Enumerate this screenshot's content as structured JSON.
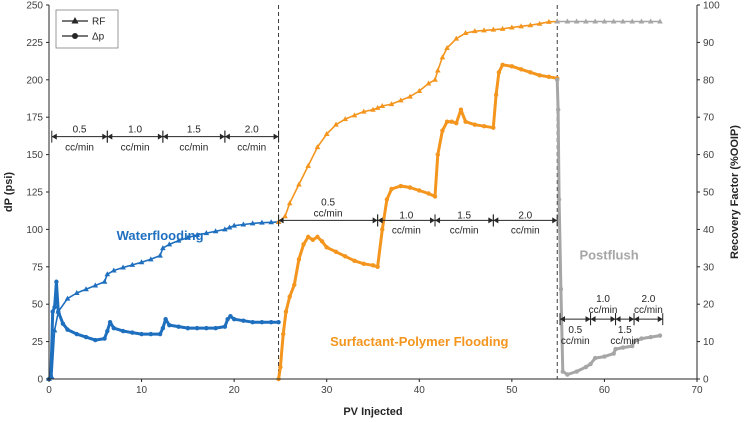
{
  "chart_data": {
    "type": "line",
    "xlabel": "PV Injected",
    "ylabel": "dP (psi)",
    "y2label": "Recovery Factor (%OOIP)",
    "xlim": [
      0,
      70
    ],
    "ylim": [
      0,
      250
    ],
    "y2lim": [
      0,
      100
    ],
    "xticks": [
      "0",
      "10",
      "20",
      "30",
      "40",
      "50",
      "60",
      "70"
    ],
    "yticks": [
      "0",
      "25",
      "50",
      "75",
      "100",
      "125",
      "150",
      "175",
      "200",
      "225",
      "250"
    ],
    "y2ticks": [
      "0",
      "10",
      "20",
      "30",
      "40",
      "50",
      "60",
      "70",
      "80",
      "90",
      "100"
    ],
    "legend": {
      "position": "top-left",
      "entries": [
        {
          "label": "RF",
          "marker": "triangle"
        },
        {
          "label": "Δp",
          "marker": "circle"
        }
      ]
    },
    "colors": {
      "waterflooding": "#1f6fbf",
      "surfactant_polymer": "#f4951e",
      "postflush": "#a6a6a6",
      "axis": "#262626"
    },
    "phase_boundaries_x": [
      24.8,
      54.9
    ],
    "phases": [
      {
        "label": "Waterflooding",
        "color": "#1f6fbf",
        "x": 12,
        "y": 93
      },
      {
        "label": "Surfactant-Polymer Flooding",
        "color": "#f4951e",
        "x": 40,
        "y": 22
      },
      {
        "label": "Postflush",
        "color": "#a6a6a6",
        "x": 60.5,
        "y": 80
      }
    ],
    "rate_segments": [
      {
        "x0": 0.3,
        "x1": 6.3,
        "y": 162,
        "rate": "0.5",
        "unit": "cc/min"
      },
      {
        "x0": 6.3,
        "x1": 12.3,
        "y": 162,
        "rate": "1.0",
        "unit": "cc/min"
      },
      {
        "x0": 12.3,
        "x1": 19.0,
        "y": 162,
        "rate": "1.5",
        "unit": "cc/min"
      },
      {
        "x0": 19.0,
        "x1": 24.8,
        "y": 162,
        "rate": "2.0",
        "unit": "cc/min"
      },
      {
        "x0": 24.8,
        "x1": 35.5,
        "y": 106,
        "rate": "0.5",
        "unit": "cc/min"
      },
      {
        "x0": 35.5,
        "x1": 41.7,
        "y": 106,
        "rate": "1.0",
        "unit": "cc/min"
      },
      {
        "x0": 41.7,
        "x1": 48.0,
        "y": 106,
        "rate": "1.5",
        "unit": "cc/min"
      },
      {
        "x0": 48.0,
        "x1": 54.9,
        "y": 106,
        "rate": "2.0",
        "unit": "cc/min"
      },
      {
        "x0": 55.2,
        "x1": 58.5,
        "y": 40,
        "rate": "0.5",
        "unit": "cc/min"
      },
      {
        "x0": 58.5,
        "x1": 61.2,
        "y": 40,
        "rate": "1.0",
        "unit": "cc/min"
      },
      {
        "x0": 61.2,
        "x1": 63.2,
        "y": 40,
        "rate": "1.5",
        "unit": "cc/min"
      },
      {
        "x0": 63.2,
        "x1": 66.3,
        "y": 40,
        "rate": "2.0",
        "unit": "cc/min"
      }
    ],
    "series": [
      {
        "name": "RF",
        "axis": "y2",
        "marker": "triangle",
        "segments": [
          {
            "phase": "waterflooding",
            "color": "#1f6fbf",
            "x": [
              0.0,
              0.3,
              0.6,
              1.0,
              2.0,
              3.0,
              4.0,
              5.0,
              6.0,
              6.3,
              7.0,
              8.0,
              9.0,
              10.0,
              11.0,
              12.0,
              12.3,
              13.0,
              14.0,
              15.0,
              16.0,
              17.0,
              18.0,
              19.0,
              19.5,
              20.0,
              21.0,
              22.0,
              23.0,
              24.0,
              24.8
            ],
            "y": [
              0,
              0.5,
              13.0,
              18.0,
              21.5,
              23.0,
              24.0,
              25.0,
              26.0,
              28.0,
              29.0,
              29.8,
              30.5,
              31.2,
              32.0,
              33.0,
              35.0,
              36.0,
              37.0,
              37.8,
              38.5,
              39.0,
              39.5,
              40.0,
              40.5,
              41.0,
              41.3,
              41.6,
              41.8,
              41.9,
              42.0
            ]
          },
          {
            "phase": "surfactant_polymer",
            "color": "#f4951e",
            "x": [
              24.8,
              25.5,
              26.0,
              27.0,
              28.0,
              29.0,
              30.0,
              31.0,
              32.0,
              33.0,
              34.0,
              35.0,
              35.5,
              36.0,
              37.0,
              38.0,
              39.0,
              40.0,
              41.0,
              41.7,
              42.0,
              42.5,
              43.0,
              44.0,
              45.0,
              46.0,
              47.0,
              48.0,
              49.0,
              50.0,
              51.0,
              52.0,
              53.0,
              54.0,
              54.9
            ],
            "y": [
              42.0,
              43.5,
              47.0,
              52.0,
              57.0,
              62.0,
              65.5,
              68.0,
              69.5,
              70.5,
              71.5,
              72.0,
              72.5,
              73.0,
              73.5,
              74.5,
              75.5,
              77.0,
              79.0,
              80.0,
              82.5,
              86.0,
              88.5,
              91.0,
              92.5,
              93.0,
              93.2,
              93.4,
              93.6,
              94.0,
              94.3,
              94.6,
              95.0,
              95.5,
              95.6
            ]
          },
          {
            "phase": "postflush",
            "color": "#a6a6a6",
            "x": [
              54.9,
              56.0,
              57.0,
              58.0,
              59.0,
              60.0,
              61.0,
              62.0,
              63.0,
              64.0,
              65.0,
              66.0
            ],
            "y": [
              95.6,
              95.6,
              95.6,
              95.6,
              95.6,
              95.6,
              95.6,
              95.6,
              95.6,
              95.6,
              95.6,
              95.6
            ]
          }
        ]
      },
      {
        "name": "Δp",
        "axis": "y",
        "marker": "circle",
        "segments": [
          {
            "phase": "waterflooding",
            "color": "#1f6fbf",
            "x": [
              0.0,
              0.2,
              0.4,
              0.6,
              0.8,
              1.0,
              1.5,
              2.0,
              3.0,
              4.0,
              5.0,
              6.0,
              6.3,
              6.6,
              7.0,
              8.0,
              9.0,
              10.0,
              11.0,
              12.0,
              12.3,
              12.6,
              13.0,
              14.0,
              15.0,
              16.0,
              17.0,
              18.0,
              19.0,
              19.3,
              19.6,
              20.0,
              21.0,
              22.0,
              23.0,
              24.0,
              24.8
            ],
            "y": [
              0,
              2,
              45,
              48,
              65,
              45,
              37,
              33,
              30,
              28,
              26,
              27,
              32,
              38,
              34,
              32,
              31,
              30,
              30,
              30,
              34,
              40,
              36,
              35,
              34,
              34,
              34,
              34,
              35,
              40,
              42,
              40,
              39,
              38,
              38,
              38,
              38
            ]
          },
          {
            "phase": "surfactant_polymer",
            "color": "#f4951e",
            "x": [
              24.8,
              25.0,
              25.3,
              25.6,
              26.0,
              26.5,
              27.0,
              27.5,
              28.0,
              28.5,
              29.0,
              29.5,
              30.0,
              31.0,
              32.0,
              33.0,
              34.0,
              35.0,
              35.5,
              36.0,
              36.5,
              37.0,
              38.0,
              39.0,
              40.0,
              41.0,
              41.7,
              42.0,
              42.5,
              43.0,
              43.5,
              44.0,
              44.5,
              45.0,
              46.0,
              47.0,
              48.0,
              48.3,
              48.6,
              49.0,
              50.0,
              51.0,
              52.0,
              53.0,
              54.0,
              54.9
            ],
            "y": [
              0,
              8,
              30,
              45,
              55,
              63,
              80,
              90,
              95,
              93,
              95,
              92,
              88,
              85,
              82,
              79,
              77,
              76,
              75,
              100,
              120,
              127,
              129,
              128,
              126,
              124,
              122,
              150,
              166,
              172,
              172,
              171,
              180,
              172,
              170,
              169,
              168,
              190,
              205,
              210,
              209,
              207,
              205,
              203,
              202,
              201
            ]
          },
          {
            "phase": "postflush",
            "color": "#a6a6a6",
            "x": [
              54.9,
              55.0,
              55.1,
              55.3,
              55.5,
              56.0,
              57.0,
              58.0,
              58.5,
              59.0,
              60.0,
              61.0,
              61.2,
              62.0,
              63.0,
              63.2,
              64.0,
              65.0,
              66.0
            ],
            "y": [
              200,
              180,
              120,
              60,
              5,
              3,
              5,
              8,
              10,
              14,
              15,
              17,
              20,
              21,
              22,
              25,
              27,
              28,
              29
            ]
          }
        ]
      }
    ]
  }
}
